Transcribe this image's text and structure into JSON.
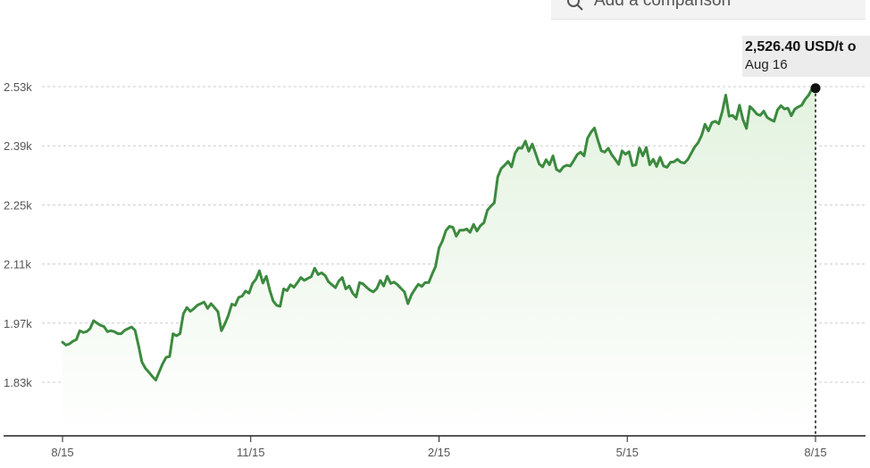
{
  "comparison": {
    "label": "Add a comparison",
    "icon": "search-icon"
  },
  "tooltip": {
    "value": "2,526.40 USD/t o",
    "date": "Aug 16"
  },
  "colors": {
    "line": "#3b8a3e",
    "area_top": "#e3f2df",
    "area_bottom": "#ffffff",
    "grid": "#cccccc",
    "axis": "#222222",
    "tick_text": "#555555"
  },
  "chart_data": {
    "type": "area",
    "title": "",
    "xlabel": "",
    "ylabel": "",
    "x_ticks": [
      "8/15",
      "11/15",
      "2/15",
      "5/15",
      "8/15"
    ],
    "y_ticks": [
      "1.83k",
      "1.97k",
      "2.11k",
      "2.25k",
      "2.39k",
      "2.53k"
    ],
    "y_tick_values": [
      1830,
      1970,
      2110,
      2250,
      2390,
      2530
    ],
    "ylim": [
      1700,
      2620
    ],
    "grid": true,
    "series": [
      {
        "values": [
          1925,
          1918,
          1921,
          1927,
          1931,
          1952,
          1948,
          1950,
          1957,
          1976,
          1970,
          1965,
          1962,
          1950,
          1952,
          1950,
          1945,
          1945,
          1953,
          1957,
          1961,
          1953,
          1917,
          1878,
          1863,
          1854,
          1844,
          1835,
          1855,
          1874,
          1889,
          1891,
          1945,
          1940,
          1945,
          1992,
          2007,
          1998,
          2004,
          2012,
          2016,
          2020,
          2005,
          2016,
          2007,
          1997,
          1952,
          1968,
          1988,
          2015,
          2012,
          2031,
          2034,
          2046,
          2041,
          2064,
          2074,
          2094,
          2065,
          2081,
          2048,
          2022,
          2012,
          2010,
          2051,
          2047,
          2061,
          2055,
          2066,
          2078,
          2071,
          2076,
          2080,
          2100,
          2085,
          2089,
          2083,
          2068,
          2061,
          2054,
          2070,
          2078,
          2051,
          2058,
          2041,
          2032,
          2066,
          2063,
          2055,
          2048,
          2044,
          2052,
          2071,
          2058,
          2081,
          2064,
          2067,
          2061,
          2052,
          2044,
          2016,
          2037,
          2050,
          2062,
          2057,
          2066,
          2066,
          2086,
          2104,
          2148,
          2165,
          2189,
          2199,
          2197,
          2176,
          2190,
          2190,
          2193,
          2185,
          2204,
          2188,
          2201,
          2208,
          2237,
          2247,
          2255,
          2316,
          2336,
          2344,
          2353,
          2340,
          2372,
          2385,
          2384,
          2401,
          2377,
          2394,
          2371,
          2347,
          2340,
          2357,
          2345,
          2366,
          2334,
          2329,
          2340,
          2344,
          2342,
          2355,
          2369,
          2375,
          2366,
          2408,
          2422,
          2432,
          2403,
          2378,
          2375,
          2384,
          2369,
          2358,
          2346,
          2378,
          2370,
          2376,
          2343,
          2345,
          2385,
          2366,
          2386,
          2345,
          2358,
          2341,
          2363,
          2342,
          2339,
          2351,
          2352,
          2358,
          2351,
          2349,
          2357,
          2372,
          2387,
          2397,
          2414,
          2441,
          2425,
          2445,
          2448,
          2442,
          2471,
          2510,
          2460,
          2462,
          2453,
          2486,
          2452,
          2431,
          2483,
          2475,
          2465,
          2462,
          2472,
          2457,
          2452,
          2448,
          2475,
          2485,
          2477,
          2479,
          2461,
          2477,
          2482,
          2486,
          2500,
          2510,
          2525,
          2526.4
        ]
      }
    ],
    "marker": {
      "x_label": "Aug 16",
      "value": 2526.4
    }
  }
}
